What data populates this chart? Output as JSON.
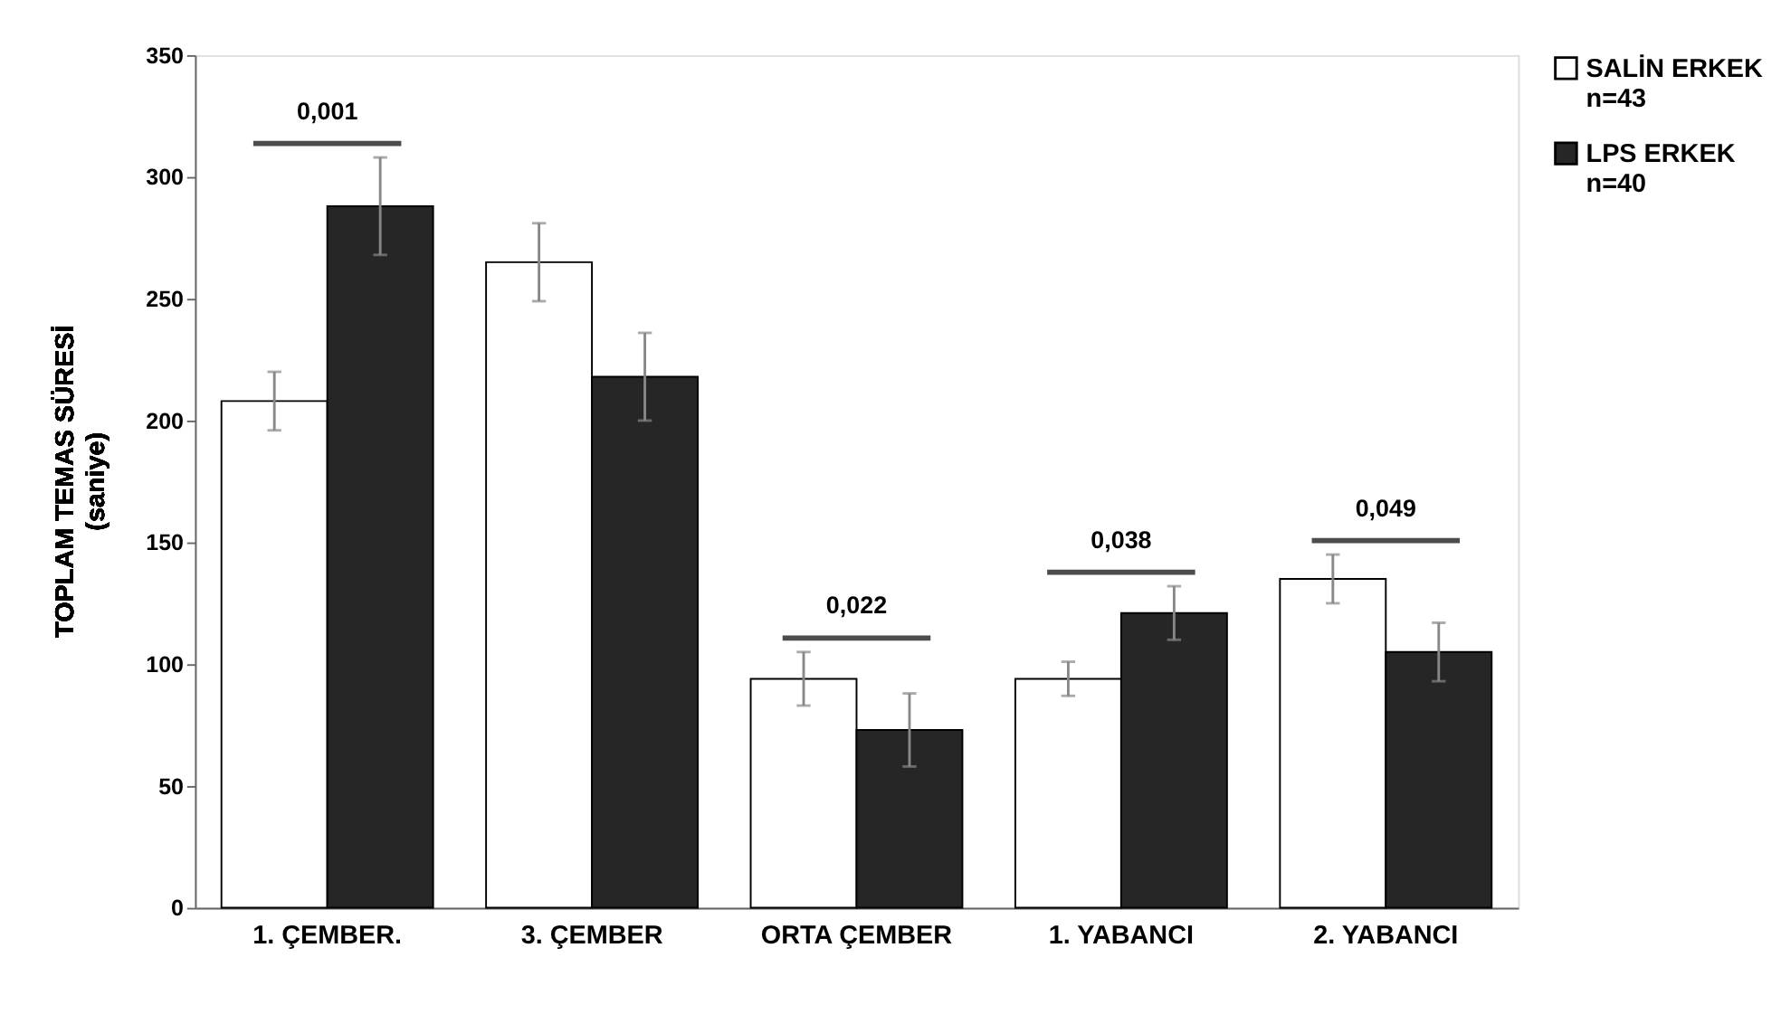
{
  "chart_data": {
    "type": "bar",
    "ylabel": "TOPLAM TEMAS SÜRESİ\n(saniye)",
    "categories": [
      "1. ÇEMBER.",
      "3. ÇEMBER",
      "ORTA ÇEMBER",
      "1. YABANCI",
      "2. YABANCI"
    ],
    "series": [
      {
        "name": "SALİN ERKEK\nn=43",
        "color": "#ffffff",
        "values": [
          208,
          265,
          94,
          94,
          135
        ],
        "errors": [
          12,
          16,
          11,
          7,
          10
        ]
      },
      {
        "name": "LPS ERKEK\nn=40",
        "color": "#262626",
        "values": [
          288,
          218,
          73,
          121,
          105
        ],
        "errors": [
          20,
          18,
          15,
          11,
          12
        ]
      }
    ],
    "annotations": [
      "0,001",
      "0,022",
      "0,038",
      "0,049"
    ],
    "ylim": [
      0,
      350
    ],
    "yticks": [
      0,
      50,
      100,
      150,
      200,
      250,
      300,
      350
    ],
    "grid": false,
    "legend": "right"
  }
}
